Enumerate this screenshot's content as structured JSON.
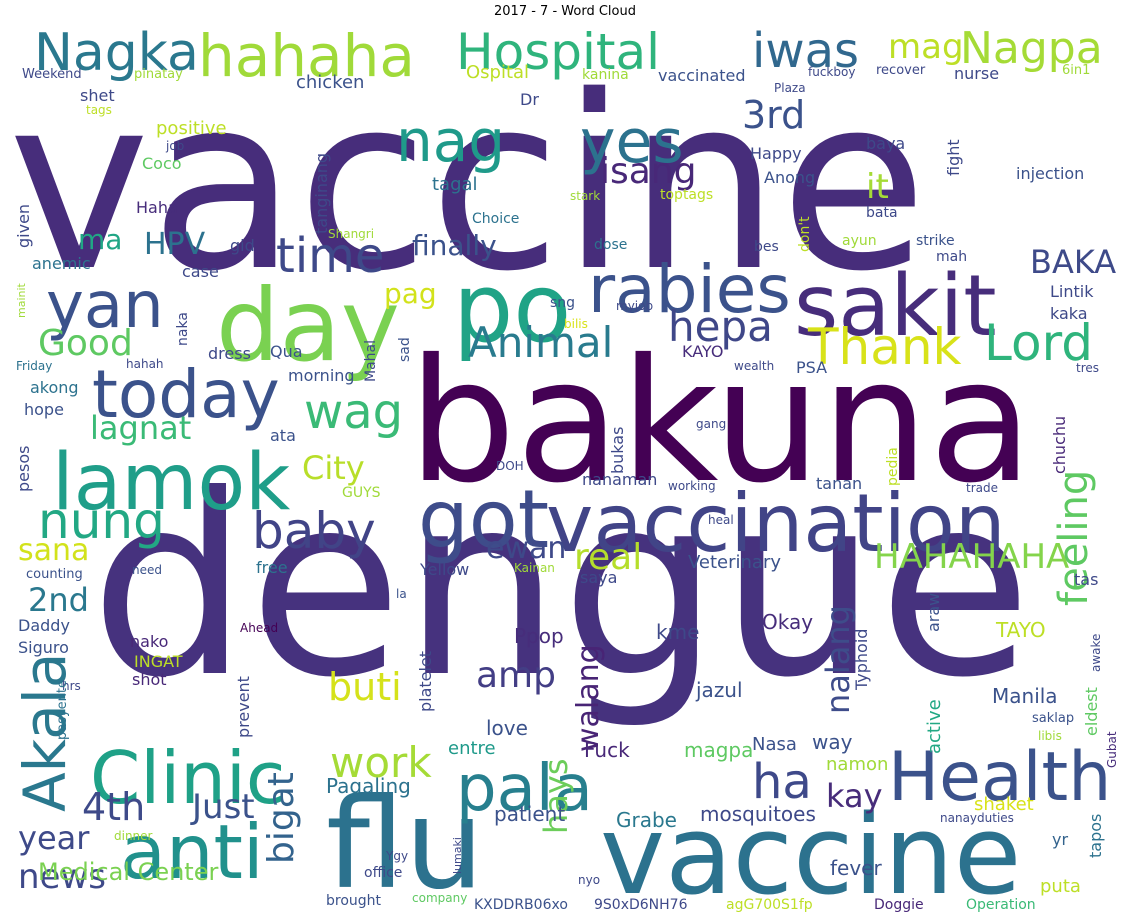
{
  "title": "2017 - 7 - Word Cloud",
  "palette": "viridis",
  "words": [
    {
      "text": "vaccine",
      "color": "#472d7b"
    },
    {
      "text": "dengue",
      "color": "#46327e"
    },
    {
      "text": "bakuna",
      "color": "#440154"
    },
    {
      "text": "flu",
      "color": "#2c728e"
    },
    {
      "text": "vaccine",
      "color": "#2c728e"
    },
    {
      "text": "vaccination",
      "color": "#414487"
    },
    {
      "text": "day",
      "color": "#7ad151"
    },
    {
      "text": "po",
      "color": "#20a386"
    },
    {
      "text": "sakit",
      "color": "#472d7b"
    },
    {
      "text": "rabies",
      "color": "#3b528b"
    },
    {
      "text": "anti",
      "color": "#21918c"
    },
    {
      "text": "lamok",
      "color": "#1f9e89"
    },
    {
      "text": "got",
      "color": "#3e4c8a"
    },
    {
      "text": "Health",
      "color": "#3b528b"
    },
    {
      "text": "Clinic",
      "color": "#1fa187"
    },
    {
      "text": "today",
      "color": "#3b528b"
    },
    {
      "text": "yan",
      "color": "#3b528b"
    },
    {
      "text": "Akala",
      "color": "#2a788e"
    },
    {
      "text": "pala",
      "color": "#277f8e"
    },
    {
      "text": "hahaha",
      "color": "#a0da39"
    },
    {
      "text": "Hospital",
      "color": "#2fb47c"
    },
    {
      "text": "Nagka",
      "color": "#2a788e"
    },
    {
      "text": "Nagpa",
      "color": "#a5db36"
    },
    {
      "text": "iwas",
      "color": "#31688e"
    },
    {
      "text": "mag",
      "color": "#bddf26"
    },
    {
      "text": "yes",
      "color": "#2c728e"
    },
    {
      "text": "nag",
      "color": "#1f9a8a"
    },
    {
      "text": "3rd",
      "color": "#3b528b"
    },
    {
      "text": "isang",
      "color": "#482878"
    },
    {
      "text": "it",
      "color": "#a5db36"
    },
    {
      "text": "time",
      "color": "#3e4989"
    },
    {
      "text": "baby",
      "color": "#414487"
    },
    {
      "text": "nung",
      "color": "#22a884"
    },
    {
      "text": "wag",
      "color": "#3aba76"
    },
    {
      "text": "hepa",
      "color": "#3f4788"
    },
    {
      "text": "Animal",
      "color": "#297b8e"
    },
    {
      "text": "Thank",
      "color": "#d8e219"
    },
    {
      "text": "Lord",
      "color": "#2fb47c"
    },
    {
      "text": "BAKA",
      "color": "#3e4a89"
    },
    {
      "text": "feeling",
      "color": "#5ec962"
    },
    {
      "text": "HAHAHAHA",
      "color": "#84d44b"
    },
    {
      "text": "ha",
      "color": "#3e4989"
    },
    {
      "text": "kay",
      "color": "#472c7a"
    },
    {
      "text": "work",
      "color": "#a5db36"
    },
    {
      "text": "Just",
      "color": "#3b528b"
    },
    {
      "text": "4th",
      "color": "#3e4a89"
    },
    {
      "text": "year",
      "color": "#3e4a89"
    },
    {
      "text": "news",
      "color": "#3e4989"
    },
    {
      "text": "bigat",
      "color": "#33638d"
    },
    {
      "text": "hays",
      "color": "#6ccd5a"
    },
    {
      "text": "ewan",
      "color": "#3e4989"
    },
    {
      "text": "real",
      "color": "#b5de2b"
    },
    {
      "text": "amp",
      "color": "#433e85"
    },
    {
      "text": "buti",
      "color": "#d5e21a"
    },
    {
      "text": "walang",
      "color": "#482475"
    },
    {
      "text": "nalang",
      "color": "#3e4c8a"
    },
    {
      "text": "lagnat",
      "color": "#3aba76"
    },
    {
      "text": "City",
      "color": "#b8de29"
    },
    {
      "text": "finally",
      "color": "#3b528b"
    },
    {
      "text": "pag",
      "color": "#d2e21b"
    },
    {
      "text": "Good",
      "color": "#5ec962"
    },
    {
      "text": "ma",
      "color": "#21a685"
    },
    {
      "text": "HPV",
      "color": "#2c728e"
    },
    {
      "text": "sana",
      "color": "#d2e21b"
    },
    {
      "text": "2nd",
      "color": "#2a788e"
    },
    {
      "text": "Medical Center",
      "color": "#7ad151"
    },
    {
      "text": "Veterinary",
      "color": "#3b528b"
    },
    {
      "text": "mosquitoes",
      "color": "#3e4989"
    },
    {
      "text": "Grabe",
      "color": "#2a788e"
    },
    {
      "text": "patient",
      "color": "#3b528b"
    },
    {
      "text": "Fuck",
      "color": "#482878"
    },
    {
      "text": "magpa",
      "color": "#5ec962"
    },
    {
      "text": "love",
      "color": "#3b528b"
    },
    {
      "text": "entre",
      "color": "#1f9a8a"
    },
    {
      "text": "Pagaling",
      "color": "#2c728e"
    },
    {
      "text": "Nasa",
      "color": "#3b528b"
    },
    {
      "text": "way",
      "color": "#3b528b"
    },
    {
      "text": "namon",
      "color": "#a0da39"
    },
    {
      "text": "shaket",
      "color": "#d8e219"
    },
    {
      "text": "Manila",
      "color": "#3b528b"
    },
    {
      "text": "TAYO",
      "color": "#bddf26"
    },
    {
      "text": "Okay",
      "color": "#472d7b"
    },
    {
      "text": "kme",
      "color": "#3e4989"
    },
    {
      "text": "Ppop",
      "color": "#472d7b"
    },
    {
      "text": "jazul",
      "color": "#3b528b"
    },
    {
      "text": "fever",
      "color": "#3b528b"
    },
    {
      "text": "puta",
      "color": "#bddf26"
    },
    {
      "text": "yr",
      "color": "#33638d"
    },
    {
      "text": "Operation",
      "color": "#3aba76"
    },
    {
      "text": "Doggie",
      "color": "#482878"
    },
    {
      "text": "agG700S1fp",
      "color": "#bddf26"
    },
    {
      "text": "9S0xD6NH76",
      "color": "#3e4989"
    },
    {
      "text": "KXDDRB06xo",
      "color": "#3b528b"
    },
    {
      "text": "company",
      "color": "#5ec962"
    },
    {
      "text": "brought",
      "color": "#3b528b"
    },
    {
      "text": "office",
      "color": "#3e4989"
    },
    {
      "text": "Ygy",
      "color": "#3e4989"
    },
    {
      "text": "nyo",
      "color": "#3e4989"
    },
    {
      "text": "nanayduties",
      "color": "#3e4989"
    },
    {
      "text": "dinner",
      "color": "#a0da39"
    },
    {
      "text": "lumaki",
      "color": "#3e4989"
    },
    {
      "text": "tapos",
      "color": "#2c728e"
    },
    {
      "text": "Gubat",
      "color": "#472d7b"
    },
    {
      "text": "eldest",
      "color": "#5ec962"
    },
    {
      "text": "libis",
      "color": "#a0da39"
    },
    {
      "text": "active",
      "color": "#22a884"
    },
    {
      "text": "saklap",
      "color": "#3b528b"
    },
    {
      "text": "awake",
      "color": "#3e4989"
    },
    {
      "text": "tas",
      "color": "#3e4989"
    },
    {
      "text": "araw",
      "color": "#3b528b"
    },
    {
      "text": "Typhoid",
      "color": "#3e4989"
    },
    {
      "text": "shot",
      "color": "#482878"
    },
    {
      "text": "INGAT",
      "color": "#bddf26"
    },
    {
      "text": "nako",
      "color": "#482878"
    },
    {
      "text": "prevent",
      "color": "#3e4989"
    },
    {
      "text": "platelet",
      "color": "#3e4989"
    },
    {
      "text": "Daddy",
      "color": "#3b528b"
    },
    {
      "text": "Siguro",
      "color": "#3b528b"
    },
    {
      "text": "counting",
      "color": "#3b528b"
    },
    {
      "text": "need",
      "color": "#3b528b"
    },
    {
      "text": "Ahead",
      "color": "#440154"
    },
    {
      "text": "la",
      "color": "#3b528b"
    },
    {
      "text": "hrs",
      "color": "#3e4989"
    },
    {
      "text": "pasyente",
      "color": "#2c728e"
    },
    {
      "text": "Kainan",
      "color": "#a0da39"
    },
    {
      "text": "Yellow",
      "color": "#3e4989"
    },
    {
      "text": "saya",
      "color": "#3e4989"
    },
    {
      "text": "free",
      "color": "#2c728e"
    },
    {
      "text": "heal",
      "color": "#3e4989"
    },
    {
      "text": "working",
      "color": "#3e4989"
    },
    {
      "text": "trade",
      "color": "#3e4989"
    },
    {
      "text": "tanan",
      "color": "#3b528b"
    },
    {
      "text": "nanaman",
      "color": "#3e4989"
    },
    {
      "text": "GUYS",
      "color": "#a0da39"
    },
    {
      "text": "DOH",
      "color": "#3e4989"
    },
    {
      "text": "pedia",
      "color": "#bddf26"
    },
    {
      "text": "chuchu",
      "color": "#482878"
    },
    {
      "text": "bukas",
      "color": "#3e4989"
    },
    {
      "text": "gang",
      "color": "#3e4989"
    },
    {
      "text": "ata",
      "color": "#3b528b"
    },
    {
      "text": "pesos",
      "color": "#3e4989"
    },
    {
      "text": "hope",
      "color": "#3b528b"
    },
    {
      "text": "akong",
      "color": "#2c728e"
    },
    {
      "text": "morning",
      "color": "#3b528b"
    },
    {
      "text": "Mahal",
      "color": "#3e4989"
    },
    {
      "text": "Qua",
      "color": "#3b528b"
    },
    {
      "text": "dress",
      "color": "#3e4989"
    },
    {
      "text": "PSA",
      "color": "#3b528b"
    },
    {
      "text": "wealth",
      "color": "#3e4989"
    },
    {
      "text": "KAYO",
      "color": "#472d7b"
    },
    {
      "text": "tres",
      "color": "#3e4989"
    },
    {
      "text": "kaka",
      "color": "#3e4989"
    },
    {
      "text": "Lintik",
      "color": "#3e4989"
    },
    {
      "text": "strike",
      "color": "#3b528b"
    },
    {
      "text": "mah",
      "color": "#3e4989"
    },
    {
      "text": "ayun",
      "color": "#a0da39"
    },
    {
      "text": "bes",
      "color": "#3e4989"
    },
    {
      "text": "don't",
      "color": "#bddf26"
    },
    {
      "text": "dose",
      "color": "#2c728e"
    },
    {
      "text": "sng",
      "color": "#3b528b"
    },
    {
      "text": "myjob",
      "color": "#3e4989"
    },
    {
      "text": "bilis",
      "color": "#d8e219"
    },
    {
      "text": "sad",
      "color": "#3b528b"
    },
    {
      "text": "naka",
      "color": "#3e4989"
    },
    {
      "text": "case",
      "color": "#3e4989"
    },
    {
      "text": "gid",
      "color": "#3e4989"
    },
    {
      "text": "anemic",
      "color": "#2c728e"
    },
    {
      "text": "given",
      "color": "#3e4989"
    },
    {
      "text": "mainit",
      "color": "#a0da39"
    },
    {
      "text": "Friday",
      "color": "#2c728e"
    },
    {
      "text": "hahah",
      "color": "#3e4989"
    },
    {
      "text": "Shangri",
      "color": "#a0da39"
    },
    {
      "text": "Choice",
      "color": "#2c728e"
    },
    {
      "text": "stark",
      "color": "#a0da39"
    },
    {
      "text": "toptags",
      "color": "#bddf26"
    },
    {
      "text": "Anong",
      "color": "#3b528b"
    },
    {
      "text": "Happy",
      "color": "#3e4989"
    },
    {
      "text": "tagal",
      "color": "#2c728e"
    },
    {
      "text": "tanginang",
      "color": "#3e4989"
    },
    {
      "text": "Haha",
      "color": "#472d7b"
    },
    {
      "text": "Coco",
      "color": "#5ec962"
    },
    {
      "text": "job",
      "color": "#3e4989"
    },
    {
      "text": "positive",
      "color": "#bddf26"
    },
    {
      "text": "tags",
      "color": "#bddf26"
    },
    {
      "text": "shet",
      "color": "#3e4989"
    },
    {
      "text": "Weekend",
      "color": "#3e4989"
    },
    {
      "text": "pinatay",
      "color": "#a0da39"
    },
    {
      "text": "chicken",
      "color": "#3b528b"
    },
    {
      "text": "Ospital",
      "color": "#bddf26"
    },
    {
      "text": "kanina",
      "color": "#a0da39"
    },
    {
      "text": "vaccinated",
      "color": "#3b528b"
    },
    {
      "text": "Dr",
      "color": "#3e4989"
    },
    {
      "text": "Plaza",
      "color": "#3e4989"
    },
    {
      "text": "fuckboy",
      "color": "#3e4989"
    },
    {
      "text": "recover",
      "color": "#3e4989"
    },
    {
      "text": "6in1",
      "color": "#a0da39"
    },
    {
      "text": "nurse",
      "color": "#3e4989"
    },
    {
      "text": "fight",
      "color": "#3e4989"
    },
    {
      "text": "baya",
      "color": "#3e4989"
    },
    {
      "text": "injection",
      "color": "#3b528b"
    },
    {
      "text": "bata",
      "color": "#3e4989"
    }
  ]
}
